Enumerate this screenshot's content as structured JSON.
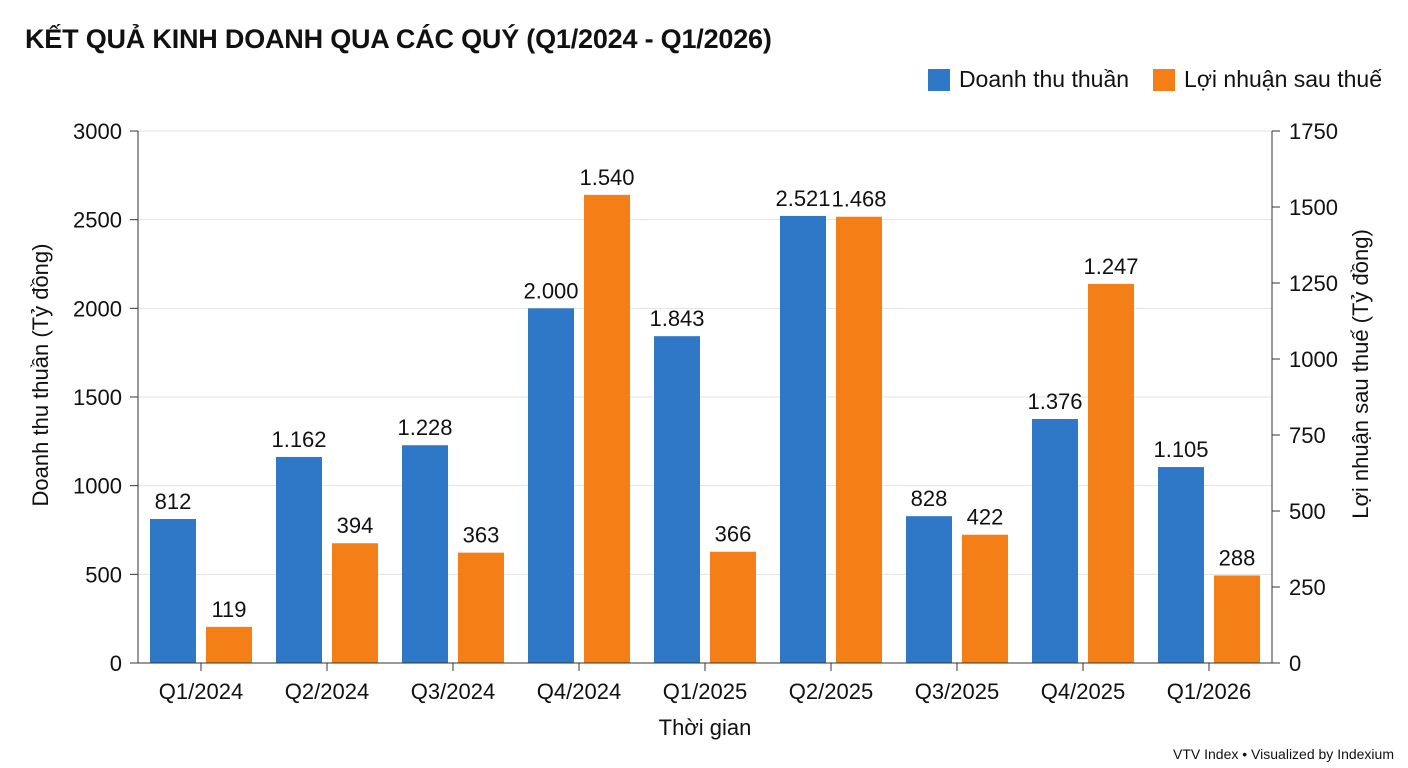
{
  "chart_data": {
    "type": "bar",
    "title": "KẾT QUẢ KINH DOANH QUA CÁC QUÝ (Q1/2024 - Q1/2026)",
    "xlabel": "Thời gian",
    "ylabel_left": "Doanh thu thuần (Tỷ đồng)",
    "ylabel_right": "Lợi nhuận sau thuế (Tỷ đồng)",
    "ylim_left": [
      0,
      3000
    ],
    "ylim_right": [
      0,
      1750
    ],
    "yticks_left": [
      "0",
      "500",
      "1000",
      "1500",
      "2000",
      "2500",
      "3000"
    ],
    "yticks_right": [
      "0",
      "250",
      "500",
      "750",
      "1000",
      "1250",
      "1500",
      "1750"
    ],
    "grid": true,
    "legend_position": "top-right",
    "categories": [
      "Q1/2024",
      "Q2/2024",
      "Q3/2024",
      "Q4/2024",
      "Q1/2025",
      "Q2/2025",
      "Q3/2025",
      "Q4/2025",
      "Q1/2026"
    ],
    "series": [
      {
        "name": "Doanh thu thuần",
        "axis": "left",
        "color": "#2f78c8",
        "values": [
          812,
          1162,
          1228,
          2000,
          1843,
          2521,
          828,
          1376,
          1105
        ],
        "labels": [
          "812",
          "1.162",
          "1.228",
          "2.000",
          "1.843",
          "2.521",
          "828",
          "1.376",
          "1.105"
        ]
      },
      {
        "name": "Lợi nhuận sau thuế",
        "axis": "right",
        "color": "#f57f17",
        "values": [
          119,
          394,
          363,
          1540,
          366,
          1468,
          422,
          1247,
          288
        ],
        "labels": [
          "119",
          "394",
          "363",
          "1.540",
          "366",
          "1.468",
          "422",
          "1.247",
          "288"
        ]
      }
    ]
  },
  "footer": {
    "source": "VTV Index • Visualized by Indexium"
  }
}
